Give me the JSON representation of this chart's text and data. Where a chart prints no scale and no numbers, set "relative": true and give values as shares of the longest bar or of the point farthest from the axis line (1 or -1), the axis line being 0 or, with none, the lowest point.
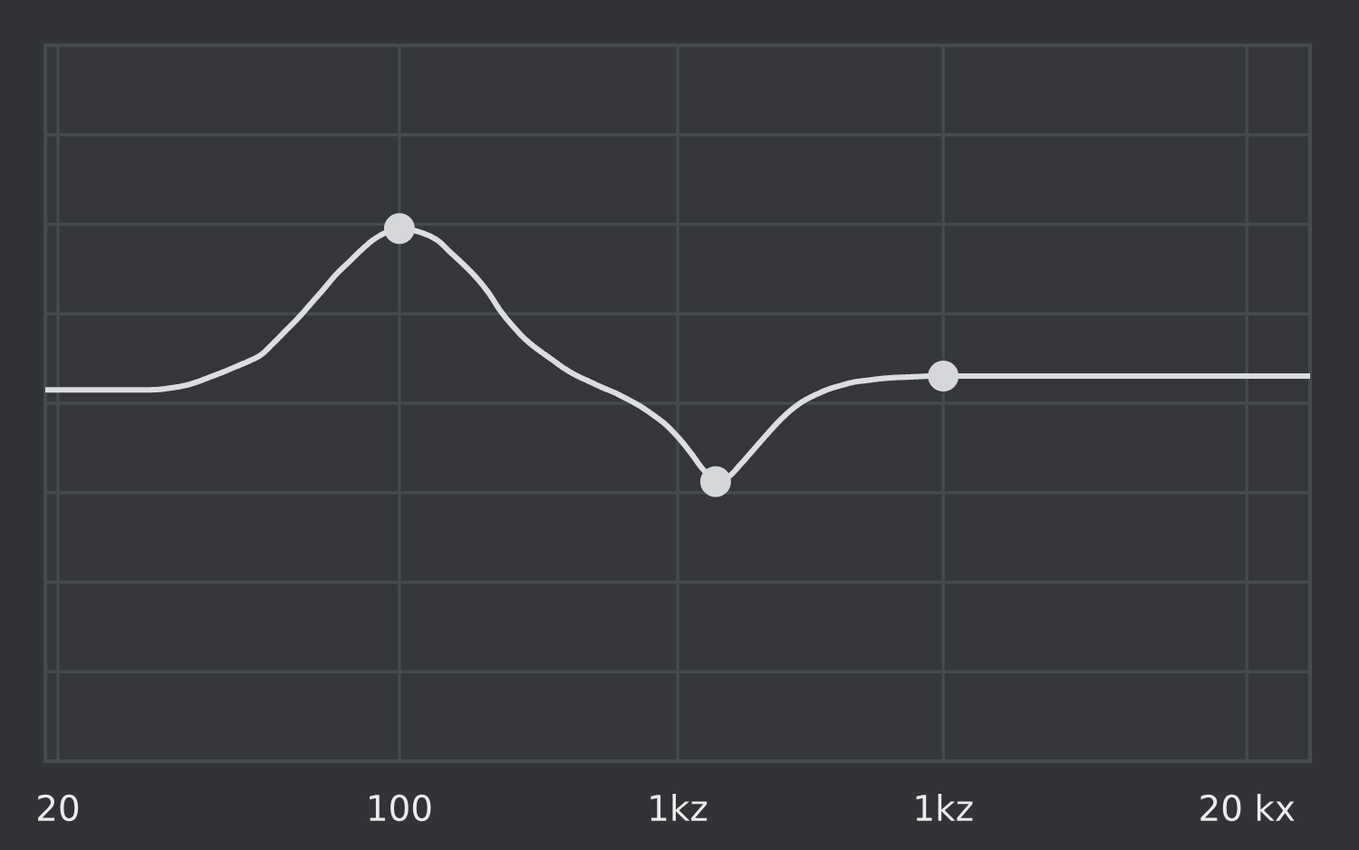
{
  "chart_data": {
    "type": "line",
    "relative": true,
    "grid": true,
    "categories": [
      null,
      "20",
      null,
      null,
      null,
      null,
      null,
      null,
      null,
      null,
      null,
      null,
      null,
      null,
      null,
      null,
      null,
      null,
      null,
      null,
      null,
      null,
      null,
      null,
      null,
      null,
      null,
      null,
      "100",
      null,
      null,
      null,
      null,
      null,
      null,
      null,
      null,
      null,
      null,
      null,
      null,
      null,
      null,
      null,
      null,
      null,
      null,
      null,
      null,
      null,
      "1kz",
      null,
      null,
      null,
      null,
      null,
      null,
      null,
      null,
      null,
      null,
      null,
      null,
      null,
      null,
      null,
      null,
      null,
      null,
      null,
      null,
      "1kz",
      null,
      null,
      null,
      null,
      null,
      null,
      null,
      null,
      null,
      null,
      null,
      null,
      null,
      null,
      null,
      null,
      null,
      null,
      null,
      null,
      null,
      null,
      null,
      "20 kx",
      null,
      null,
      null,
      null,
      null
    ],
    "series": [
      {
        "color": "#dcdddf",
        "line_style": "solid",
        "values": [
          0.697,
          0.697,
          0.697,
          0.697,
          0.697,
          0.697,
          0.697,
          0.697,
          0.697,
          0.698,
          0.701,
          0.705,
          0.712,
          0.721,
          0.73,
          0.74,
          0.75,
          0.762,
          0.784,
          0.808,
          0.832,
          0.859,
          0.886,
          0.914,
          0.937,
          0.96,
          0.98,
          0.993,
          1,
          0.997,
          0.99,
          0.978,
          0.956,
          0.934,
          0.91,
          0.881,
          0.845,
          0.816,
          0.791,
          0.772,
          0.755,
          0.738,
          0.724,
          0.713,
          0.702,
          0.692,
          0.68,
          0.667,
          0.651,
          0.633,
          0.609,
          0.58,
          0.548,
          0.525,
          0.534,
          0.558,
          0.585,
          0.612,
          0.638,
          0.66,
          0.677,
          0.689,
          0.699,
          0.706,
          0.712,
          0.715,
          0.718,
          0.72,
          0.721,
          0.722,
          0.723,
          0.723,
          0.723,
          0.723,
          0.723,
          0.723,
          0.723,
          0.723,
          0.723,
          0.723,
          0.723,
          0.723,
          0.723,
          0.723,
          0.723,
          0.723,
          0.723,
          0.723,
          0.723,
          0.723,
          0.723,
          0.723,
          0.723,
          0.723,
          0.723,
          0.723,
          0.723,
          0.723,
          0.723,
          0.723,
          0.723
        ]
      },
      {
        "type": "scatter",
        "color": "#d5d7d9",
        "marker": "circle",
        "values": [
          null,
          null,
          null,
          null,
          null,
          null,
          null,
          null,
          null,
          null,
          null,
          null,
          null,
          null,
          null,
          null,
          null,
          null,
          null,
          null,
          null,
          null,
          null,
          null,
          null,
          null,
          null,
          null,
          1,
          null,
          null,
          null,
          null,
          null,
          null,
          null,
          null,
          null,
          null,
          null,
          null,
          null,
          null,
          null,
          null,
          null,
          null,
          null,
          null,
          null,
          null,
          null,
          null,
          0.525,
          null,
          null,
          null,
          null,
          null,
          null,
          null,
          null,
          null,
          null,
          null,
          null,
          null,
          null,
          null,
          null,
          null,
          0.723,
          null,
          null,
          null,
          null,
          null,
          null,
          null,
          null,
          null,
          null,
          null,
          null,
          null,
          null,
          null,
          null,
          null,
          null,
          null,
          null,
          null,
          null,
          null,
          null,
          null,
          null,
          null,
          null,
          null
        ]
      }
    ]
  }
}
